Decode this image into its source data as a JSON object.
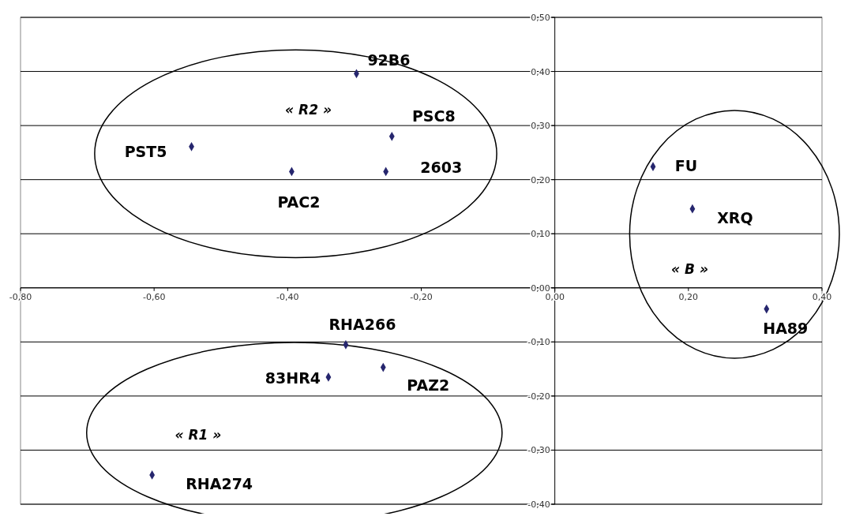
{
  "chart_data": {
    "type": "scatter",
    "x": [
      -0.297,
      -0.244,
      -0.544,
      -0.394,
      -0.253,
      0.147,
      0.206,
      0.317,
      -0.313,
      -0.339,
      -0.257,
      -0.603
    ],
    "series": [
      {
        "color": "#26266e",
        "values": [
          0.396,
          0.28,
          0.261,
          0.215,
          0.215,
          0.224,
          0.146,
          -0.039,
          -0.105,
          -0.165,
          -0.147,
          -0.346
        ]
      }
    ],
    "marker": "diamond",
    "grid": "y",
    "xlim": [
      -0.8,
      0.4
    ],
    "xticks": [
      {
        "value": -0.8,
        "label": "-0,80"
      },
      {
        "value": -0.6,
        "label": "-0,60"
      },
      {
        "value": -0.4,
        "label": "-0,40"
      },
      {
        "value": -0.2,
        "label": "-0,20"
      },
      {
        "value": 0,
        "label": "0,00"
      },
      {
        "value": 0.2,
        "label": "0,20"
      },
      {
        "value": 0.4,
        "label": "0,40"
      }
    ],
    "ylim": [
      -0.4,
      0.5
    ],
    "yticks": [
      {
        "value": -0.4,
        "label": "-0,40"
      },
      {
        "value": -0.3,
        "label": "-0,30"
      },
      {
        "value": -0.2,
        "label": "-0,20"
      },
      {
        "value": -0.1,
        "label": "-0,10"
      },
      {
        "value": 0,
        "label": "0,00"
      },
      {
        "value": 0.1,
        "label": "0,10"
      },
      {
        "value": 0.2,
        "label": "0,20"
      },
      {
        "value": 0.3,
        "label": "0,30"
      },
      {
        "value": 0.4,
        "label": "0,40"
      },
      {
        "value": 0.5,
        "label": "0,50"
      }
    ],
    "annotations": [
      {
        "text": "92B6",
        "x": -0.297,
        "y": 0.396
      },
      {
        "text": "PSC8",
        "x": -0.244,
        "y": 0.28
      },
      {
        "text": "PST5",
        "x": -0.544,
        "y": 0.261
      },
      {
        "text": "PAC2",
        "x": -0.394,
        "y": 0.215
      },
      {
        "text": "2603",
        "x": -0.253,
        "y": 0.215
      },
      {
        "text": "FU",
        "x": 0.147,
        "y": 0.224
      },
      {
        "text": "XRQ",
        "x": 0.206,
        "y": 0.146
      },
      {
        "text": "HA89",
        "x": 0.317,
        "y": -0.039
      },
      {
        "text": "RHA266",
        "x": -0.313,
        "y": -0.105
      },
      {
        "text": "83HR4",
        "x": -0.339,
        "y": -0.165
      },
      {
        "text": "PAZ2",
        "x": -0.257,
        "y": -0.147
      },
      {
        "text": "RHA274",
        "x": -0.603,
        "y": -0.346
      },
      "« R2 »",
      "« R1 »",
      "« B »"
    ]
  }
}
